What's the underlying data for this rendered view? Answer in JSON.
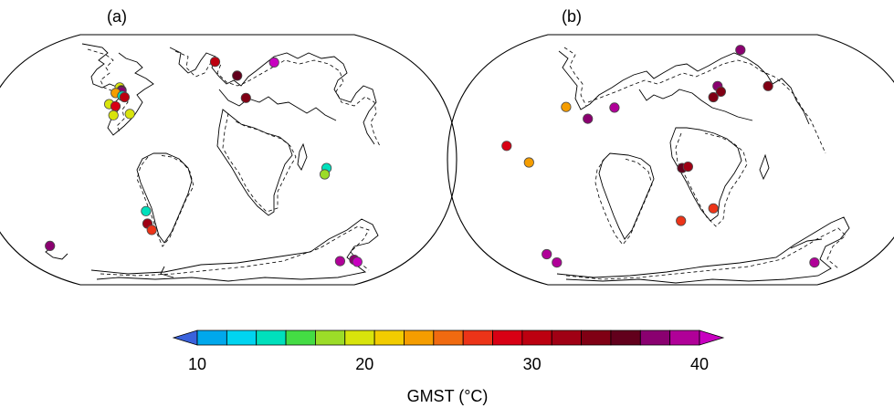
{
  "panels": [
    {
      "label": "(a)",
      "sites": [
        {
          "lon": -3.4,
          "lat": 70.5,
          "value": 31
        },
        {
          "lon": 18.5,
          "lat": 60.5,
          "value": 35.5
        },
        {
          "lon": 60.0,
          "lat": 70.0,
          "value": 40
        },
        {
          "lon": 24.0,
          "lat": 44.5,
          "value": 34.5
        },
        {
          "lon": -90.0,
          "lat": 52.0,
          "value": 20.5
        },
        {
          "lon": -87.0,
          "lat": 50.0,
          "value": 35
        },
        {
          "lon": -86.5,
          "lat": 49.0,
          "value": 37
        },
        {
          "lon": -91.0,
          "lat": 48.0,
          "value": 23.5
        },
        {
          "lon": -84.0,
          "lat": 46.0,
          "value": 14
        },
        {
          "lon": -81.5,
          "lat": 45.0,
          "value": 30
        },
        {
          "lon": -92.0,
          "lat": 40.0,
          "value": 20
        },
        {
          "lon": -86.0,
          "lat": 38.5,
          "value": 29
        },
        {
          "lon": -85.0,
          "lat": 32.0,
          "value": 20
        },
        {
          "lon": -72.0,
          "lat": 33.0,
          "value": 19
        },
        {
          "lon": 82.0,
          "lat": -6.0,
          "value": 14
        },
        {
          "lon": 81.0,
          "lat": -10.5,
          "value": 18
        },
        {
          "lon": -60.0,
          "lat": -37.0,
          "value": 14
        },
        {
          "lon": -62.0,
          "lat": -46.0,
          "value": 32
        },
        {
          "lon": -60.0,
          "lat": -50.5,
          "value": 27.5
        },
        {
          "lon": -167.0,
          "lat": -62.0,
          "value": 37.5
        },
        {
          "lon": 135.0,
          "lat": -73.0,
          "value": 39.5
        },
        {
          "lon": 149.0,
          "lat": -72.0,
          "value": 38
        },
        {
          "lon": 155.0,
          "lat": -73.5,
          "value": 40
        }
      ]
    },
    {
      "label": "(b)",
      "sites": [
        {
          "lon": 70.0,
          "lat": 79.0,
          "value": 37
        },
        {
          "lon": -98.0,
          "lat": 38.0,
          "value": 23.5
        },
        {
          "lon": -57.0,
          "lat": 37.5,
          "value": 39.5
        },
        {
          "lon": -76.5,
          "lat": 29.5,
          "value": 37
        },
        {
          "lon": 33.0,
          "lat": 53.0,
          "value": 37
        },
        {
          "lon": 35.0,
          "lat": 49.0,
          "value": 33
        },
        {
          "lon": 27.5,
          "lat": 45.0,
          "value": 34.5
        },
        {
          "lon": 80.0,
          "lat": 53.0,
          "value": 33
        },
        {
          "lon": -135.0,
          "lat": 10.0,
          "value": 28
        },
        {
          "lon": -117.0,
          "lat": -2.0,
          "value": 23.5
        },
        {
          "lon": 0.0,
          "lat": -6.0,
          "value": 35.5
        },
        {
          "lon": 4.5,
          "lat": -5.0,
          "value": 31.5
        },
        {
          "lon": 26.0,
          "lat": -35.0,
          "value": 26
        },
        {
          "lon": -1.0,
          "lat": -44.0,
          "value": 27.5
        },
        {
          "lon": -144.0,
          "lat": -68.0,
          "value": 39
        },
        {
          "lon": -142.0,
          "lat": -74.0,
          "value": 39
        },
        {
          "lon": 150.0,
          "lat": -74.0,
          "value": 39.5
        }
      ]
    }
  ],
  "colorbar": {
    "ticks": [
      "10",
      "20",
      "30",
      "40"
    ],
    "min": 10,
    "max": 40,
    "label": "GMST (°C)",
    "colors": [
      "#3a62dc",
      "#00a8ec",
      "#00d4f0",
      "#00e0bc",
      "#44dc44",
      "#9cdc28",
      "#d8e40c",
      "#f2cc00",
      "#f59d00",
      "#f06a10",
      "#ec3418",
      "#d80014",
      "#bc0010",
      "#a00014",
      "#800014",
      "#62001c",
      "#8a0070",
      "#b00098",
      "#c800c0"
    ]
  },
  "boundary_value_lines": [
    "solid",
    "dashed"
  ]
}
